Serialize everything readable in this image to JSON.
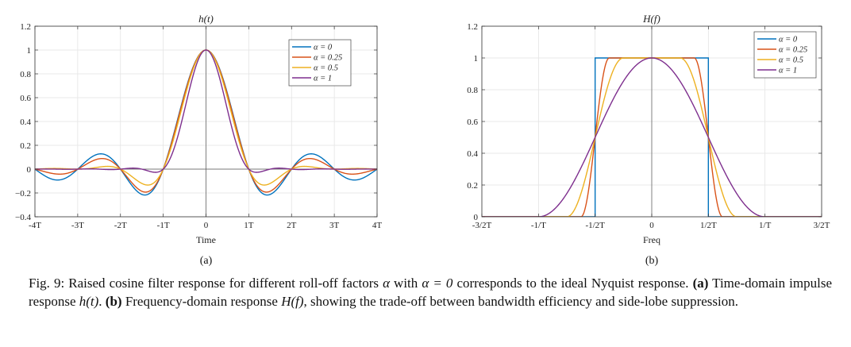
{
  "colors": {
    "alpha_0": "#0072BD",
    "alpha_0_25": "#D95319",
    "alpha_0_5": "#EDB120",
    "alpha_1": "#7E2F8E"
  },
  "chart_data": [
    {
      "id": "time",
      "type": "line",
      "title": "h(t)",
      "xlabel": "Time",
      "ylabel": "",
      "xlim": [
        -4,
        4
      ],
      "ylim": [
        -0.4,
        1.2
      ],
      "x_units": "T",
      "x_ticks": [
        -4,
        -3,
        -2,
        -1,
        0,
        1,
        2,
        3,
        4
      ],
      "x_tick_labels": [
        "-4T",
        "-3T",
        "-2T",
        "-1T",
        "0",
        "1T",
        "2T",
        "3T",
        "4T"
      ],
      "y_ticks": [
        -0.4,
        -0.2,
        0,
        0.2,
        0.4,
        0.6,
        0.8,
        1,
        1.2
      ],
      "y_tick_labels": [
        "−0.4",
        "−0.2",
        "0",
        "0.2",
        "0.4",
        "0.6",
        "0.8",
        "1",
        "1.2"
      ],
      "grid": true,
      "legend_position": "top-right",
      "subfigure_label": "(a)",
      "function": "raised-cosine impulse response sinc(t)·cos(πα t)/(1−(2α t)²)",
      "series": [
        {
          "name": "α = 0",
          "alpha": 0,
          "color_key": "alpha_0",
          "sample_points": [
            [
              0,
              1
            ],
            [
              1,
              0
            ],
            [
              1.5,
              -0.212
            ],
            [
              2,
              0
            ],
            [
              2.5,
              0.127
            ],
            [
              3,
              0
            ],
            [
              3.5,
              -0.091
            ],
            [
              4,
              0
            ]
          ]
        },
        {
          "name": "α = 0.25",
          "alpha": 0.25,
          "color_key": "alpha_0_25",
          "sample_points": [
            [
              0,
              1
            ],
            [
              1,
              0
            ],
            [
              1.5,
              -0.196
            ],
            [
              2,
              0
            ],
            [
              2.5,
              0.092
            ],
            [
              3,
              0
            ],
            [
              3.5,
              -0.041
            ],
            [
              4,
              0
            ]
          ]
        },
        {
          "name": "α = 0.5",
          "alpha": 0.5,
          "color_key": "alpha_0_5",
          "sample_points": [
            [
              0,
              1
            ],
            [
              1,
              0
            ],
            [
              1.5,
              -0.141
            ],
            [
              2,
              0
            ],
            [
              2.5,
              0.025
            ],
            [
              3,
              0
            ],
            [
              3.5,
              -0.007
            ],
            [
              4,
              0
            ]
          ]
        },
        {
          "name": "α = 1",
          "alpha": 1,
          "color_key": "alpha_1",
          "sample_points": [
            [
              0,
              1
            ],
            [
              0.5,
              0.5
            ],
            [
              1,
              0
            ],
            [
              1.5,
              0
            ],
            [
              2,
              0
            ],
            [
              2.5,
              0
            ],
            [
              3,
              0
            ],
            [
              4,
              0
            ]
          ]
        }
      ]
    },
    {
      "id": "freq",
      "type": "line",
      "title": "H(f)",
      "xlabel": "Freq",
      "ylabel": "",
      "xlim": [
        -1.5,
        1.5
      ],
      "ylim": [
        0,
        1.2
      ],
      "x_units": "1/T",
      "x_ticks": [
        -1.5,
        -1,
        -0.5,
        0,
        0.5,
        1,
        1.5
      ],
      "x_tick_labels": [
        "-3/2T",
        "-1/T",
        "-1/2T",
        "0",
        "1/2T",
        "1/T",
        "3/2T"
      ],
      "y_ticks": [
        0,
        0.2,
        0.4,
        0.6,
        0.8,
        1,
        1.2
      ],
      "y_tick_labels": [
        "0",
        "0.2",
        "0.4",
        "0.6",
        "0.8",
        "1",
        "1.2"
      ],
      "grid": true,
      "legend_position": "top-right",
      "subfigure_label": "(b)",
      "function": "raised-cosine spectrum: 1 for |f|≤(1−α)/2T, cosine roll-off to 0 at (1+α)/2T",
      "series": [
        {
          "name": "α = 0",
          "alpha": 0,
          "color_key": "alpha_0",
          "sample_points": [
            [
              -1.5,
              0
            ],
            [
              -0.5,
              0
            ],
            [
              -0.5,
              1
            ],
            [
              0.5,
              1
            ],
            [
              0.5,
              0
            ],
            [
              1.5,
              0
            ]
          ]
        },
        {
          "name": "α = 0.25",
          "alpha": 0.25,
          "color_key": "alpha_0_25",
          "sample_points": [
            [
              -0.625,
              0
            ],
            [
              -0.5,
              0.5
            ],
            [
              -0.375,
              1
            ],
            [
              0.375,
              1
            ],
            [
              0.5,
              0.5
            ],
            [
              0.625,
              0
            ]
          ]
        },
        {
          "name": "α = 0.5",
          "alpha": 0.5,
          "color_key": "alpha_0_5",
          "sample_points": [
            [
              -0.75,
              0
            ],
            [
              -0.5,
              0.5
            ],
            [
              -0.25,
              1
            ],
            [
              0.25,
              1
            ],
            [
              0.5,
              0.5
            ],
            [
              0.75,
              0
            ]
          ]
        },
        {
          "name": "α = 1",
          "alpha": 1,
          "color_key": "alpha_1",
          "sample_points": [
            [
              -1,
              0
            ],
            [
              -0.5,
              0.5
            ],
            [
              0,
              1
            ],
            [
              0.5,
              0.5
            ],
            [
              1,
              0
            ]
          ]
        }
      ]
    }
  ],
  "caption": {
    "line1_prefix": "Fig. 9: Raised cosine filter response for different roll-off factors ",
    "line1_alpha": "α",
    "line1_mid": " with ",
    "line1_alpha_eq": "α = 0",
    "line1_suffix": " corresponds to the ideal Nyquist response.",
    "a_label": "(a)",
    "a_text": " Time-domain impulse response ",
    "a_symbol": "h(t)",
    "a_end": ". ",
    "b_label": "(b)",
    "b_text": " Frequency-domain response ",
    "b_symbol": "H(f)",
    "b_end": ", showing the trade-off between bandwidth efficiency and side-lobe suppression."
  }
}
